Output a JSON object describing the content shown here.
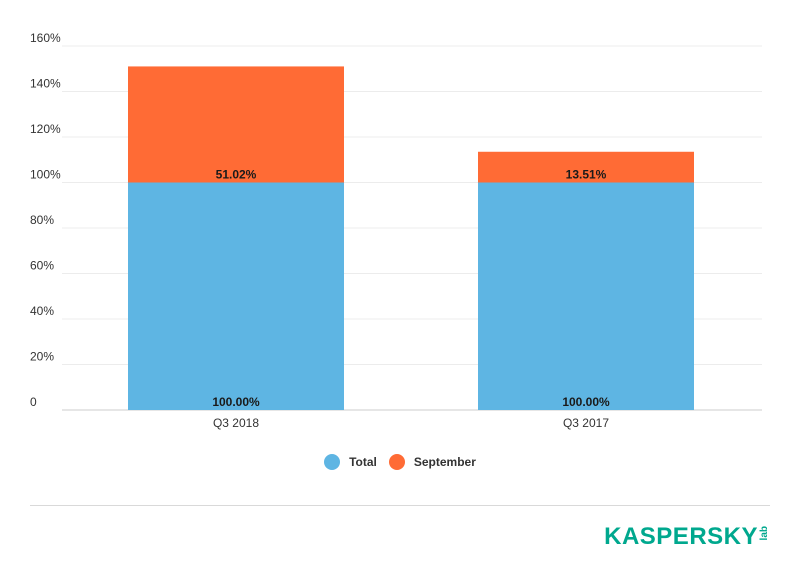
{
  "chart_data": {
    "type": "bar",
    "stacked": true,
    "categories": [
      "Q3 2018",
      "Q3 2017"
    ],
    "series": [
      {
        "name": "Total",
        "values": [
          100.0,
          100.0
        ],
        "labels": [
          "100.00%",
          "100.00%"
        ],
        "color": "#5EB5E3"
      },
      {
        "name": "September",
        "values": [
          51.02,
          13.51
        ],
        "labels": [
          "51.02%",
          "13.51%"
        ],
        "color": "#FF6B35"
      }
    ],
    "ylim": [
      0,
      160
    ],
    "yticks": [
      0,
      20,
      40,
      60,
      80,
      100,
      120,
      140,
      160
    ],
    "ytick_labels": [
      "0",
      "20%",
      "40%",
      "60%",
      "80%",
      "100%",
      "120%",
      "140%",
      "160%"
    ],
    "title": "",
    "xlabel": "",
    "ylabel": "",
    "grid": true,
    "legend_position": "bottom-center"
  },
  "brand": {
    "name": "KASPERSKY",
    "sub": "lab",
    "color": "#00A88E"
  }
}
